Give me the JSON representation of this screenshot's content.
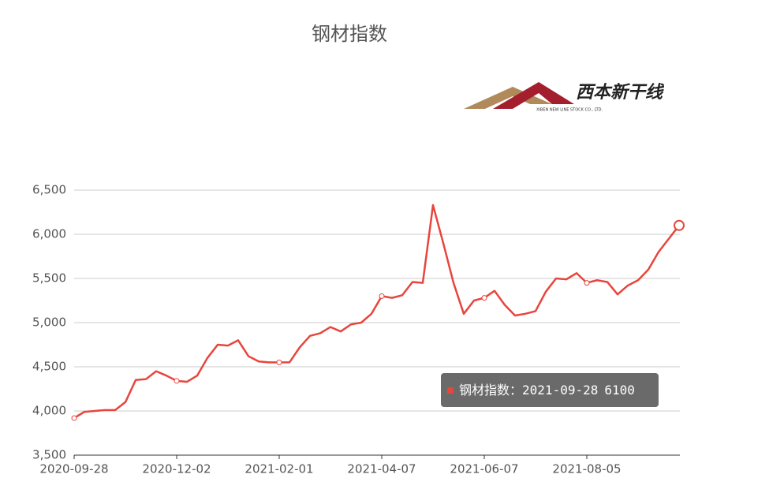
{
  "chart_data": {
    "type": "line",
    "title": "钢材指数",
    "logo": {
      "text": "西本新干线",
      "subtext": "XIBEN NEW LINE STOCK CO., LTD."
    },
    "categories": [
      "2020-09-28",
      null,
      null,
      null,
      null,
      null,
      null,
      null,
      null,
      null,
      "2020-12-02",
      null,
      null,
      null,
      null,
      null,
      null,
      null,
      null,
      null,
      "2021-02-01",
      null,
      null,
      null,
      null,
      null,
      null,
      null,
      null,
      null,
      "2021-04-07",
      null,
      null,
      null,
      null,
      null,
      null,
      null,
      null,
      null,
      "2021-06-07",
      null,
      null,
      null,
      null,
      null,
      null,
      null,
      null,
      null,
      "2021-08-05",
      null,
      null,
      null,
      null,
      null,
      null,
      null,
      null,
      null
    ],
    "series": [
      {
        "name": "钢材指数",
        "color": "#e8453c",
        "values": [
          3920,
          3990,
          4000,
          4010,
          4010,
          4100,
          4350,
          4360,
          4450,
          4400,
          4340,
          4330,
          4400,
          4600,
          4750,
          4740,
          4800,
          4620,
          4560,
          4550,
          4550,
          4550,
          4720,
          4850,
          4880,
          4950,
          4900,
          4980,
          5000,
          5100,
          5300,
          5280,
          5310,
          5460,
          5450,
          6330,
          5900,
          5450,
          5100,
          5250,
          5280,
          5360,
          5200,
          5080,
          5100,
          5130,
          5350,
          5500,
          5490,
          5560,
          5450,
          5480,
          5460,
          5320,
          5420,
          5480,
          5600,
          5800,
          5950,
          6100
        ]
      }
    ],
    "ylim": [
      3500,
      6500
    ],
    "yticks": [
      {
        "value": 3500,
        "label": "3,500"
      },
      {
        "value": 4000,
        "label": "4,000"
      },
      {
        "value": 4500,
        "label": "4,500"
      },
      {
        "value": 5000,
        "label": "5,000"
      },
      {
        "value": 5500,
        "label": "5,500"
      },
      {
        "value": 6000,
        "label": "6,000"
      },
      {
        "value": 6500,
        "label": "6,500"
      }
    ],
    "grid": true,
    "tooltip": {
      "separator": "：",
      "date": "2021-09-28",
      "value": 6100
    }
  }
}
